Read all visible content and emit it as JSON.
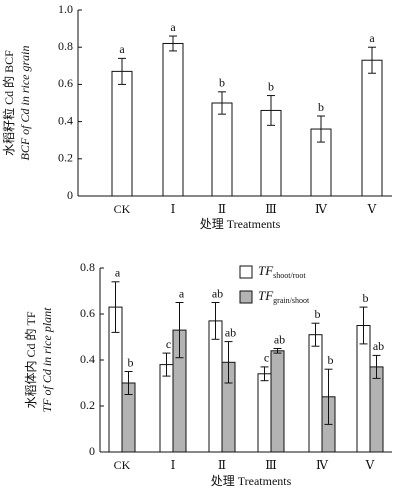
{
  "chart_data": [
    {
      "type": "bar",
      "y_label": [
        "水稻籽粒 Cd 的 BCF",
        "BCF of Cd in rice grain"
      ],
      "x_label": "处理 Treatments",
      "categories": [
        "CK",
        "Ⅰ",
        "Ⅱ",
        "Ⅲ",
        "Ⅳ",
        "Ⅴ"
      ],
      "series": [
        {
          "color": "#ffffff",
          "values": [
            0.67,
            0.82,
            0.5,
            0.46,
            0.36,
            0.73
          ],
          "errors": [
            0.07,
            0.04,
            0.06,
            0.08,
            0.07,
            0.07
          ],
          "letters": [
            "a",
            "a",
            "b",
            "b",
            "b",
            "a"
          ]
        }
      ],
      "ylim": [
        0,
        1
      ],
      "yticks": [
        0,
        0.2,
        0.4,
        0.6,
        0.8,
        {
          "value": 1,
          "label": "1.0"
        }
      ]
    },
    {
      "type": "bar",
      "y_label": [
        "水稻体内 Cd 的 TF",
        "TF of Cd in rice plant"
      ],
      "x_label": "处理 Treatments",
      "categories": [
        "CK",
        "Ⅰ",
        "Ⅱ",
        "Ⅲ",
        "Ⅳ",
        "Ⅴ"
      ],
      "series": [
        {
          "name": "TF",
          "subscript": "shoot/root",
          "color": "#ffffff",
          "values": [
            0.63,
            0.38,
            0.57,
            0.34,
            0.51,
            0.55
          ],
          "errors": [
            0.11,
            0.05,
            0.08,
            0.03,
            0.05,
            0.08
          ],
          "letters": [
            "a",
            "c",
            "ab",
            "c",
            "b",
            "b"
          ]
        },
        {
          "name": "TF",
          "subscript": "grain/shoot",
          "color": "#b3b3b3",
          "values": [
            0.3,
            0.53,
            0.39,
            0.44,
            0.24,
            0.37
          ],
          "errors": [
            0.05,
            0.12,
            0.09,
            0.01,
            0.12,
            0.05
          ],
          "letters": [
            "b",
            "a",
            "ab",
            "ab",
            "b",
            "ab"
          ]
        }
      ],
      "ylim": [
        0,
        0.8
      ],
      "yticks": [
        0,
        0.2,
        0.4,
        0.6,
        0.8
      ]
    }
  ]
}
